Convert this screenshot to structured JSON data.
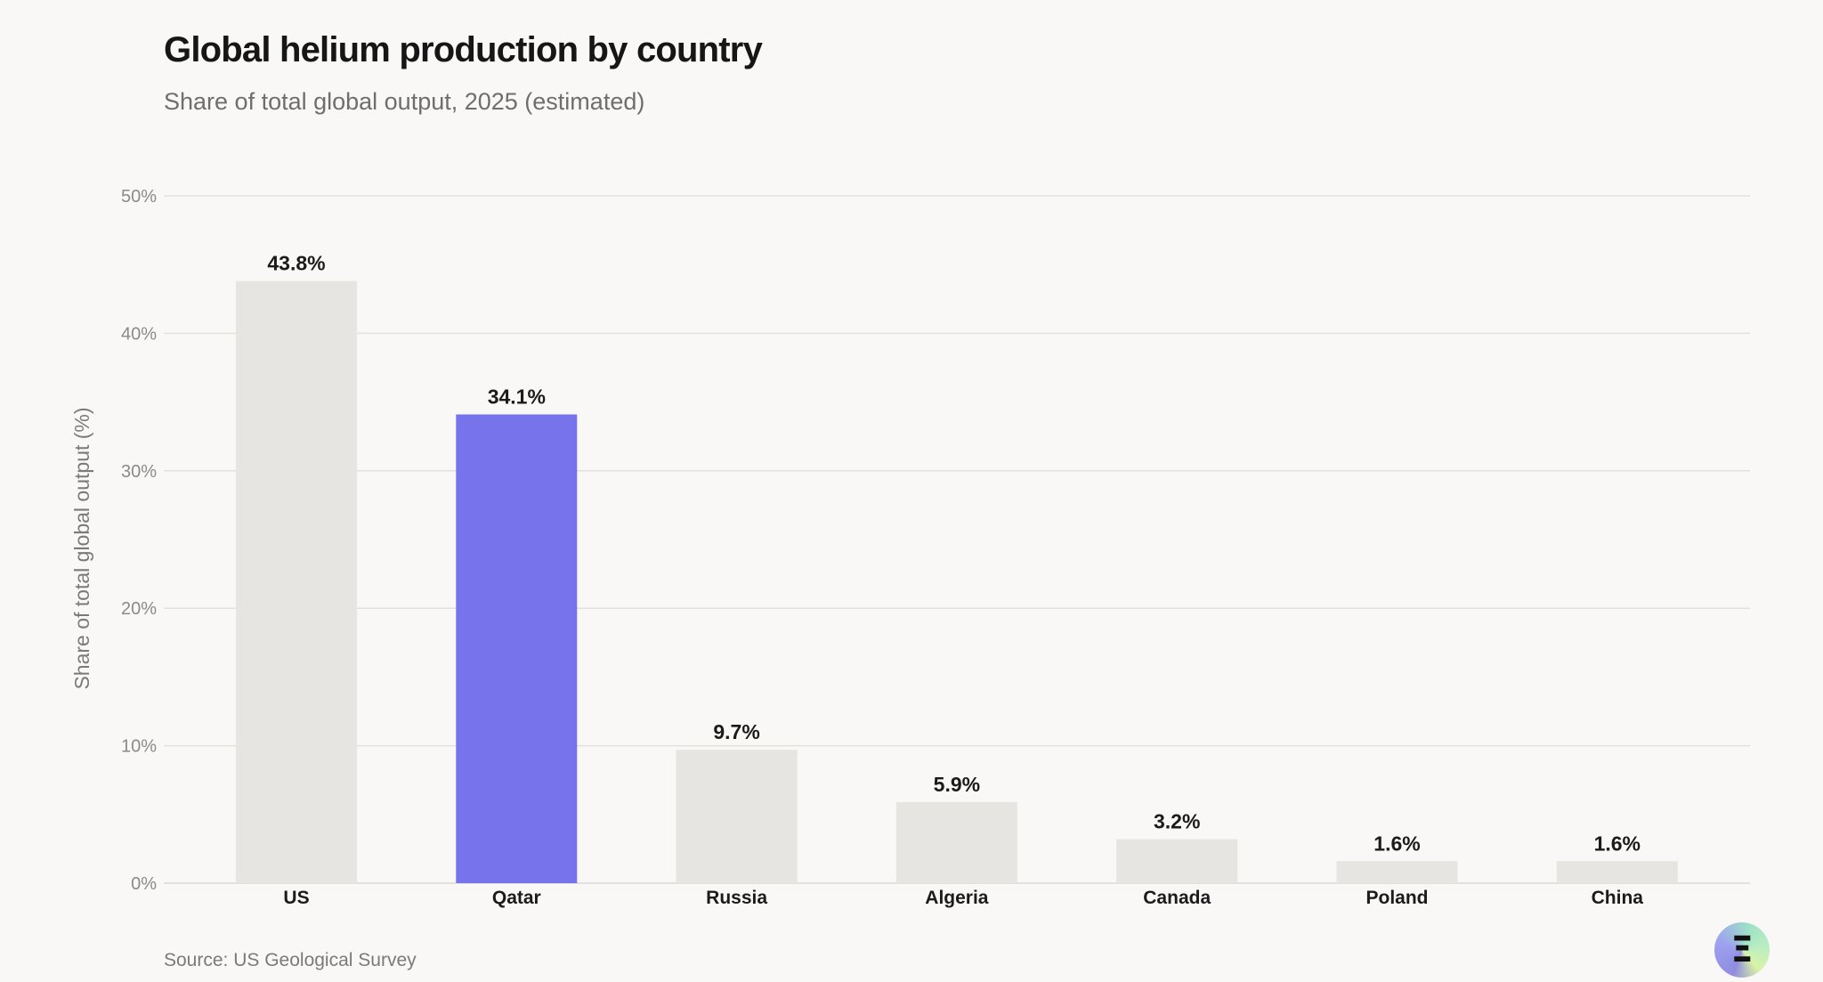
{
  "chart_data": {
    "type": "bar",
    "title": "Global helium production by country",
    "subtitle": "Share of total global output, 2025 (estimated)",
    "ylabel": "Share of total global output (%)",
    "xlabel": "",
    "categories": [
      "US",
      "Qatar",
      "Russia",
      "Algeria",
      "Canada",
      "Poland",
      "China"
    ],
    "values": [
      43.8,
      34.1,
      9.7,
      5.9,
      3.2,
      1.6,
      1.6
    ],
    "data_labels": [
      "43.8%",
      "34.1%",
      "9.7%",
      "5.9%",
      "3.2%",
      "1.6%",
      "1.6%"
    ],
    "ylim": [
      0,
      50
    ],
    "yticks": [
      0,
      10,
      20,
      30,
      40,
      50
    ],
    "ytick_labels": [
      "0%",
      "10%",
      "20%",
      "30%",
      "40%",
      "50%"
    ],
    "highlight_category": "Qatar",
    "grid": true,
    "source": "Source: US Geological Survey"
  },
  "colors": {
    "background": "#f9f8f6",
    "bar_default": "#e7e5e1",
    "bar_highlight": "#7673eb",
    "gridline": "#e3e1dd",
    "axis_text": "#8a8a8a",
    "label_text": "#1b1b1b"
  },
  "logo": {
    "icon": "e-letter-logo-icon",
    "glyph": "Ξ"
  }
}
